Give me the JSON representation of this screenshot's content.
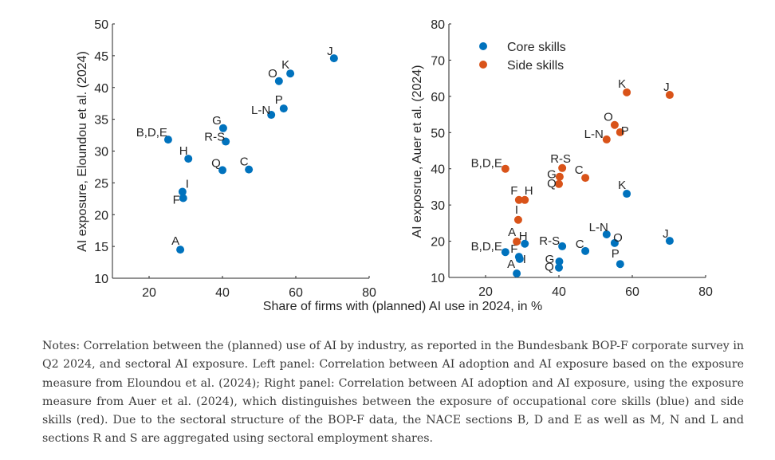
{
  "chart_data": [
    {
      "type": "scatter",
      "panel": "left",
      "title": "",
      "xlabel": "",
      "ylabel": "AI exposure, Eloundou et al. (2024)",
      "xlim": [
        10,
        80
      ],
      "ylim": [
        10,
        50
      ],
      "xticks": [
        20,
        40,
        60,
        80
      ],
      "yticks": [
        10,
        15,
        20,
        25,
        30,
        35,
        40,
        45,
        50
      ],
      "grid": false,
      "series": [
        {
          "name": "Eloundou",
          "color": "#0072BD",
          "points": [
            {
              "label": "A",
              "x": 28.5,
              "y": 14.5
            },
            {
              "label": "B,D,E",
              "x": 25.2,
              "y": 31.8
            },
            {
              "label": "C",
              "x": 47.2,
              "y": 27.1
            },
            {
              "label": "F",
              "x": 29.3,
              "y": 22.6
            },
            {
              "label": "G",
              "x": 40.2,
              "y": 33.6
            },
            {
              "label": "H",
              "x": 30.7,
              "y": 28.8
            },
            {
              "label": "I",
              "x": 29.1,
              "y": 23.6
            },
            {
              "label": "J",
              "x": 70.4,
              "y": 44.6
            },
            {
              "label": "K",
              "x": 58.5,
              "y": 42.2
            },
            {
              "label": "L-N",
              "x": 53.3,
              "y": 35.7
            },
            {
              "label": "O",
              "x": 55.4,
              "y": 41.0
            },
            {
              "label": "P",
              "x": 56.7,
              "y": 36.7
            },
            {
              "label": "Q",
              "x": 40.0,
              "y": 27.0
            },
            {
              "label": "R-S",
              "x": 40.9,
              "y": 31.5
            }
          ]
        }
      ]
    },
    {
      "type": "scatter",
      "panel": "right",
      "title": "",
      "xlabel": "",
      "ylabel": "AI exposrue, Auer et al. (2024)",
      "xlim": [
        10,
        80
      ],
      "ylim": [
        10,
        80
      ],
      "xticks": [
        20,
        40,
        60,
        80
      ],
      "yticks": [
        10,
        20,
        30,
        40,
        50,
        60,
        70,
        80
      ],
      "grid": false,
      "legend": {
        "placement": "top-left",
        "entries": [
          "Core skills",
          "Side skills"
        ]
      },
      "series": [
        {
          "name": "Core skills",
          "color": "#0072BD",
          "points": [
            {
              "label": "A",
              "x": 28.5,
              "y": 11.1
            },
            {
              "label": "B,D,E",
              "x": 25.4,
              "y": 17.0
            },
            {
              "label": "C",
              "x": 47.2,
              "y": 17.3
            },
            {
              "label": "F",
              "x": 29.1,
              "y": 15.7
            },
            {
              "label": "G",
              "x": 40.1,
              "y": 14.4
            },
            {
              "label": "H",
              "x": 30.7,
              "y": 19.3
            },
            {
              "label": "I",
              "x": 29.3,
              "y": 15.1
            },
            {
              "label": "J",
              "x": 70.2,
              "y": 20.1
            },
            {
              "label": "K",
              "x": 58.5,
              "y": 33.1
            },
            {
              "label": "L-N",
              "x": 53.0,
              "y": 21.9
            },
            {
              "label": "O",
              "x": 55.2,
              "y": 19.5
            },
            {
              "label": "P",
              "x": 56.7,
              "y": 13.7
            },
            {
              "label": "Q",
              "x": 40.0,
              "y": 12.7
            },
            {
              "label": "R-S",
              "x": 40.9,
              "y": 18.6
            }
          ]
        },
        {
          "name": "Side skills",
          "color": "#D95319",
          "points": [
            {
              "label": "A",
              "x": 28.5,
              "y": 19.9
            },
            {
              "label": "B,D,E",
              "x": 25.4,
              "y": 40.0
            },
            {
              "label": "C",
              "x": 47.2,
              "y": 37.5
            },
            {
              "label": "F",
              "x": 29.1,
              "y": 31.4
            },
            {
              "label": "G",
              "x": 40.2,
              "y": 37.8
            },
            {
              "label": "H",
              "x": 30.7,
              "y": 31.4
            },
            {
              "label": "I",
              "x": 28.9,
              "y": 25.9
            },
            {
              "label": "J",
              "x": 70.2,
              "y": 60.4
            },
            {
              "label": "K",
              "x": 58.5,
              "y": 61.1
            },
            {
              "label": "L-N",
              "x": 53.0,
              "y": 48.1
            },
            {
              "label": "O",
              "x": 55.2,
              "y": 52.1
            },
            {
              "label": "P",
              "x": 56.7,
              "y": 50.1
            },
            {
              "label": "Q",
              "x": 40.0,
              "y": 35.8
            },
            {
              "label": "R-S",
              "x": 40.9,
              "y": 40.2
            }
          ]
        }
      ]
    }
  ],
  "shared_xlabel": "Share of firms with (planned) AI use in 2024, in %",
  "notes": "Notes: Correlation between the (planned) use of AI by industry, as reported in the Bundesbank BOP-F corporate survey in Q2 2024, and sectoral AI exposure. Left panel: Correlation between AI adoption and AI exposure based on the exposure measure from Eloundou et al. (2024); Right panel: Correlation between AI adoption and AI exposure, using the exposure measure from Auer et al. (2024), which distinguishes between the exposure of occupational core skills (blue) and side skills (red). Due to the sectoral structure of the BOP-F data, the NACE sections B, D and E as well as M, N and L and sections R and S are aggregated using sectoral employment shares."
}
